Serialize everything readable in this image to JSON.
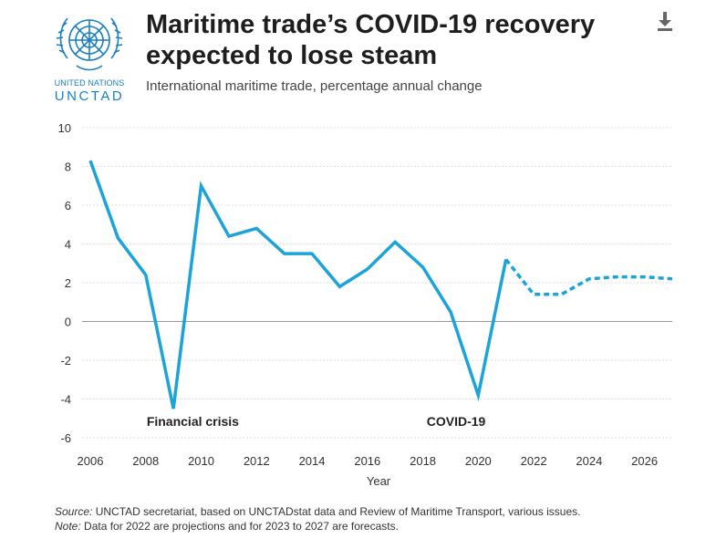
{
  "header": {
    "title": "Maritime trade’s COVID-19 recovery expected to lose steam",
    "subtitle": "International maritime trade, percentage annual change"
  },
  "logo": {
    "line1": "UNITED NATIONS",
    "line2": "UNCTAD",
    "icon": "un-emblem-icon",
    "color": "#1a7fc4"
  },
  "toolbar": {
    "download_icon": "download-icon"
  },
  "footer": {
    "source_label": "Source:",
    "source_text": "UNCTAD secretariat, based on UNCTADstat data and Review of Maritime Transport, various issues.",
    "note_label": "Note:",
    "note_text": "Data for 2022 are projections and for 2023 to 2027 are forecasts."
  },
  "chart_data": {
    "type": "line",
    "title": "Maritime trade’s COVID-19 recovery expected to lose steam",
    "subtitle": "International maritime trade, percentage annual change",
    "xlabel": "Year",
    "ylabel": "",
    "xlim": [
      2006,
      2027
    ],
    "ylim": [
      -6,
      10
    ],
    "yticks": [
      10,
      8,
      6,
      4,
      2,
      0,
      -2,
      -4,
      -6
    ],
    "xticks": [
      2006,
      2008,
      2010,
      2012,
      2014,
      2016,
      2018,
      2020,
      2022,
      2024,
      2026
    ],
    "grid": true,
    "line_color": "#1ba3da",
    "series": [
      {
        "style": "solid",
        "x": [
          2006,
          2007,
          2008,
          2009,
          2010,
          2011,
          2012,
          2013,
          2014,
          2015,
          2016,
          2017,
          2018,
          2019,
          2020,
          2021
        ],
        "values": [
          8.3,
          4.3,
          2.4,
          -4.5,
          7.0,
          4.4,
          4.8,
          3.5,
          3.5,
          1.8,
          2.7,
          4.1,
          2.8,
          0.5,
          -3.8,
          3.2
        ]
      },
      {
        "style": "dotted",
        "x": [
          2021,
          2022,
          2023,
          2024,
          2025,
          2026,
          2027
        ],
        "values": [
          3.2,
          1.4,
          1.4,
          2.2,
          2.3,
          2.3,
          2.2
        ]
      }
    ],
    "annotations": [
      {
        "text": "Financial crisis",
        "x": 2009.7,
        "y": -5.2
      },
      {
        "text": "COVID-19",
        "x": 2019.2,
        "y": -5.2
      }
    ]
  }
}
